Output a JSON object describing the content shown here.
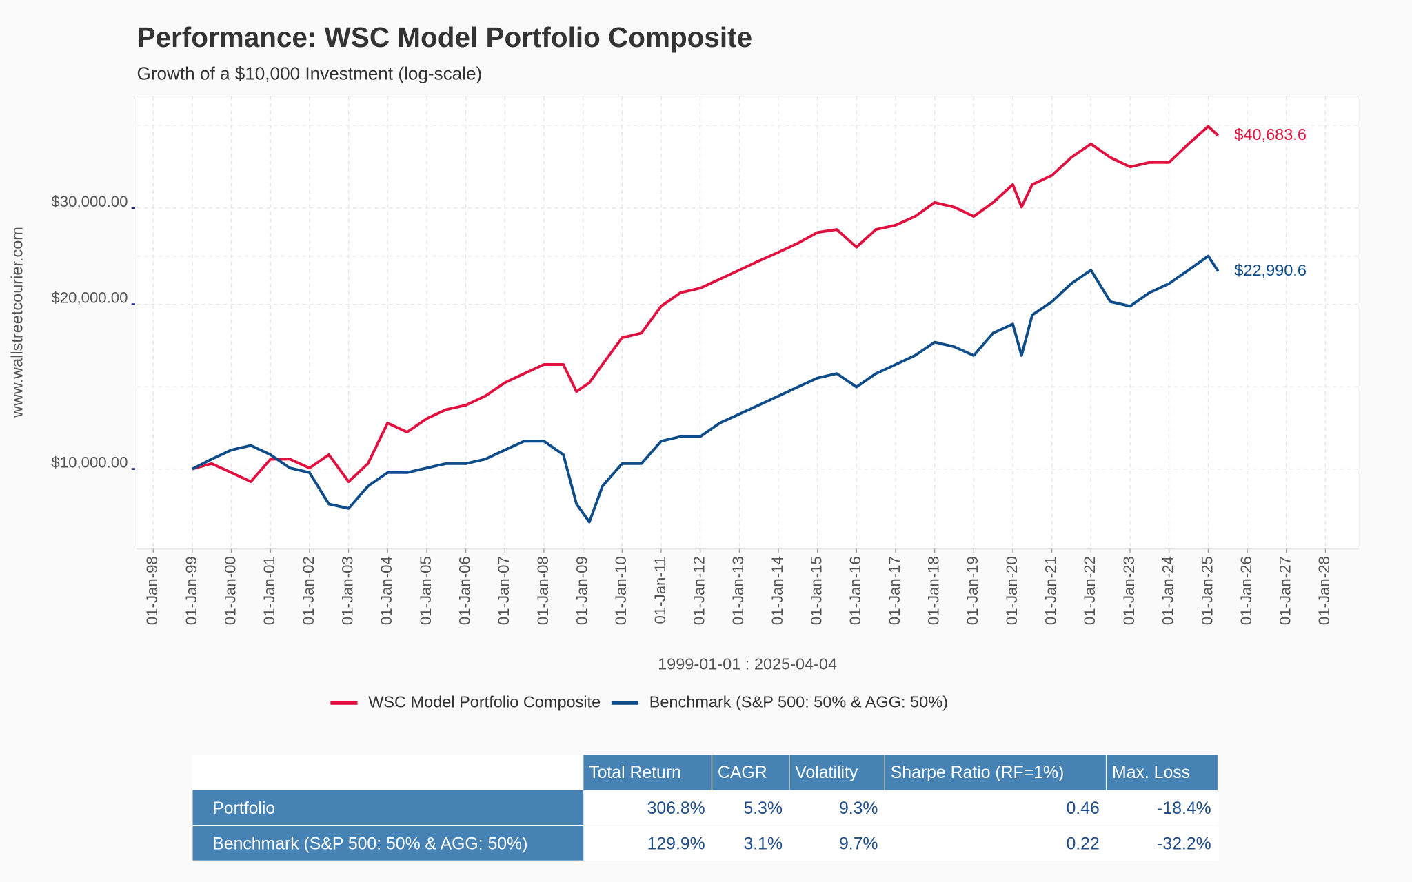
{
  "chart_data": {
    "type": "line",
    "title": "Performance: WSC Model Portfolio Composite",
    "subtitle": "Growth of a $10,000 Investment (log-scale)",
    "y_label": "www.wallstreetcourier.com",
    "x_label": "1999-01-01 : 2025-04-04",
    "log_y": true,
    "grid": true,
    "legend": "bottom",
    "x": [
      "1999-01-01",
      "1999-07-01",
      "2000-01-01",
      "2000-07-01",
      "2001-01-01",
      "2001-07-01",
      "2002-01-01",
      "2002-07-01",
      "2003-01-01",
      "2003-07-01",
      "2004-01-01",
      "2004-07-01",
      "2005-01-01",
      "2005-07-01",
      "2006-01-01",
      "2006-07-01",
      "2007-01-01",
      "2007-07-01",
      "2008-01-01",
      "2008-07-01",
      "2008-11-01",
      "2009-03-01",
      "2009-07-01",
      "2010-01-01",
      "2010-07-01",
      "2011-01-01",
      "2011-07-01",
      "2012-01-01",
      "2012-07-01",
      "2013-01-01",
      "2013-07-01",
      "2014-01-01",
      "2014-07-01",
      "2015-01-01",
      "2015-07-01",
      "2016-01-01",
      "2016-07-01",
      "2017-01-01",
      "2017-07-01",
      "2018-01-01",
      "2018-07-01",
      "2019-01-01",
      "2019-07-01",
      "2020-01-01",
      "2020-03-23",
      "2020-07-01",
      "2021-01-01",
      "2021-07-01",
      "2022-01-01",
      "2022-07-01",
      "2023-01-01",
      "2023-07-01",
      "2024-01-01",
      "2024-07-01",
      "2025-01-01",
      "2025-04-04"
    ],
    "series": [
      {
        "name": "WSC Model Portfolio Composite",
        "color": "#e0103f",
        "values": [
          10000,
          10230,
          9850,
          9480,
          10420,
          10420,
          10040,
          10620,
          9480,
          10230,
          12130,
          11680,
          12360,
          12840,
          13080,
          13590,
          14380,
          14940,
          15520,
          15520,
          13850,
          14380,
          15520,
          17380,
          17720,
          19840,
          21000,
          21400,
          22230,
          23100,
          24000,
          24900,
          25860,
          27060,
          27400,
          25440,
          27400,
          27900,
          28950,
          30700,
          30110,
          28950,
          30700,
          33100,
          30110,
          33100,
          34400,
          37100,
          39290,
          37100,
          35670,
          36340,
          36340,
          39290,
          42300,
          40683.6
        ],
        "value_labels": [
          null,
          null,
          null,
          null,
          null,
          null,
          null,
          null,
          null,
          null,
          null,
          null,
          null,
          null,
          null,
          null,
          null,
          null,
          null,
          null,
          null,
          null,
          null,
          null,
          null,
          null,
          null,
          null,
          null,
          null,
          null,
          null,
          null,
          null,
          null,
          null,
          null,
          null,
          null,
          null,
          null,
          null,
          null,
          null,
          null,
          null,
          null,
          null,
          null,
          null,
          null,
          null,
          null,
          null,
          null,
          "$40,683.6"
        ]
      },
      {
        "name": "Benchmark (S&P 500: 50% & AGG: 50%)",
        "color": "#0e4c8a",
        "values": [
          10000,
          10420,
          10830,
          11040,
          10620,
          10040,
          9850,
          8630,
          8470,
          9300,
          9850,
          9850,
          10040,
          10230,
          10230,
          10420,
          10830,
          11240,
          11240,
          10620,
          8630,
          8000,
          9300,
          10230,
          10230,
          11240,
          11460,
          11460,
          12130,
          12600,
          13080,
          13590,
          14120,
          14660,
          14940,
          14120,
          14940,
          15520,
          16120,
          17050,
          16730,
          16120,
          17720,
          18400,
          16120,
          19120,
          20220,
          21820,
          23100,
          20220,
          19840,
          21000,
          21820,
          23100,
          24500,
          22990.6
        ],
        "value_labels": [
          null,
          null,
          null,
          null,
          null,
          null,
          null,
          null,
          null,
          null,
          null,
          null,
          null,
          null,
          null,
          null,
          null,
          null,
          null,
          null,
          null,
          null,
          null,
          null,
          null,
          null,
          null,
          null,
          null,
          null,
          null,
          null,
          null,
          null,
          null,
          null,
          null,
          null,
          null,
          null,
          null,
          null,
          null,
          null,
          null,
          null,
          null,
          null,
          null,
          null,
          null,
          null,
          null,
          null,
          null,
          "$22,990.6"
        ]
      }
    ],
    "ylim": [
      7140,
      48000
    ],
    "yticks": [
      {
        "value": 10000,
        "label": "$10,000.00"
      },
      {
        "value": 20000,
        "label": "$20,000.00"
      },
      {
        "value": 30000,
        "label": "$30,000.00"
      }
    ],
    "minor_yticks": [
      14142,
      24495,
      42426
    ],
    "xlim": [
      "1997-08-01",
      "2028-11-01"
    ],
    "xticks": [
      {
        "value": "1998-01-01",
        "label": "01-Jan-98"
      },
      {
        "value": "1999-01-01",
        "label": "01-Jan-99"
      },
      {
        "value": "2000-01-01",
        "label": "01-Jan-00"
      },
      {
        "value": "2001-01-01",
        "label": "01-Jan-01"
      },
      {
        "value": "2002-01-01",
        "label": "01-Jan-02"
      },
      {
        "value": "2003-01-01",
        "label": "01-Jan-03"
      },
      {
        "value": "2004-01-01",
        "label": "01-Jan-04"
      },
      {
        "value": "2005-01-01",
        "label": "01-Jan-05"
      },
      {
        "value": "2006-01-01",
        "label": "01-Jan-06"
      },
      {
        "value": "2007-01-01",
        "label": "01-Jan-07"
      },
      {
        "value": "2008-01-01",
        "label": "01-Jan-08"
      },
      {
        "value": "2009-01-01",
        "label": "01-Jan-09"
      },
      {
        "value": "2010-01-01",
        "label": "01-Jan-10"
      },
      {
        "value": "2011-01-01",
        "label": "01-Jan-11"
      },
      {
        "value": "2012-01-01",
        "label": "01-Jan-12"
      },
      {
        "value": "2013-01-01",
        "label": "01-Jan-13"
      },
      {
        "value": "2014-01-01",
        "label": "01-Jan-14"
      },
      {
        "value": "2015-01-01",
        "label": "01-Jan-15"
      },
      {
        "value": "2016-01-01",
        "label": "01-Jan-16"
      },
      {
        "value": "2017-01-01",
        "label": "01-Jan-17"
      },
      {
        "value": "2018-01-01",
        "label": "01-Jan-18"
      },
      {
        "value": "2019-01-01",
        "label": "01-Jan-19"
      },
      {
        "value": "2020-01-01",
        "label": "01-Jan-20"
      },
      {
        "value": "2021-01-01",
        "label": "01-Jan-21"
      },
      {
        "value": "2022-01-01",
        "label": "01-Jan-22"
      },
      {
        "value": "2023-01-01",
        "label": "01-Jan-23"
      },
      {
        "value": "2024-01-01",
        "label": "01-Jan-24"
      },
      {
        "value": "2025-01-01",
        "label": "01-Jan-25"
      },
      {
        "value": "2026-01-01",
        "label": "01-Jan-26"
      },
      {
        "value": "2027-01-01",
        "label": "01-Jan-27"
      },
      {
        "value": "2028-01-01",
        "label": "01-Jan-28"
      }
    ]
  },
  "table": {
    "columns": [
      "Total Return",
      "CAGR",
      "Volatility",
      "Sharpe Ratio (RF=1%)",
      "Max. Loss"
    ],
    "rows": [
      {
        "name": "Portfolio",
        "cells": [
          "306.8%",
          "5.3%",
          "9.3%",
          "0.46",
          "-18.4%"
        ]
      },
      {
        "name": "Benchmark (S&P 500: 50% & AGG: 50%)",
        "cells": [
          "129.9%",
          "3.1%",
          "9.7%",
          "0.22",
          "-32.2%"
        ]
      }
    ]
  }
}
